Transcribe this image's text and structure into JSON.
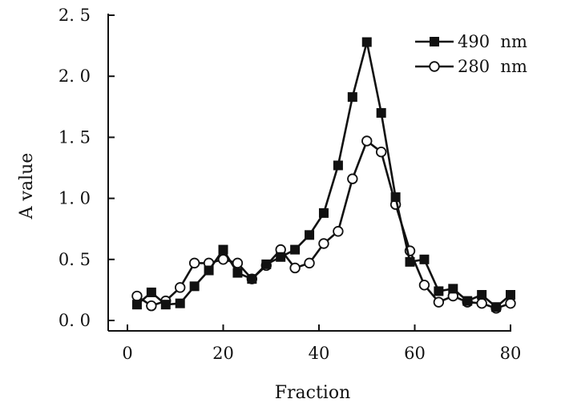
{
  "chart_data": {
    "type": "line",
    "xlabel": "Fraction",
    "ylabel": "A value",
    "xlim": [
      -5,
      80
    ],
    "ylim": [
      -0.1,
      2.5
    ],
    "xticks": [
      0,
      20,
      40,
      60,
      80
    ],
    "yticks": [
      0.0,
      0.5,
      1.0,
      1.5,
      2.0,
      2.5
    ],
    "xtick_labels": [
      "0",
      "20",
      "40",
      "60",
      "80"
    ],
    "ytick_labels": [
      "0. 0",
      "0. 5",
      "1. 0",
      "1. 5",
      "2. 0",
      "2. 5"
    ],
    "grid": false,
    "legend_position": "top-right",
    "series": [
      {
        "name": "490  nm",
        "marker": "filled-square",
        "x": [
          2,
          5,
          8,
          11,
          14,
          17,
          20,
          23,
          26,
          29,
          32,
          35,
          38,
          41,
          44,
          47,
          50,
          53,
          56,
          59,
          62,
          65,
          68,
          71,
          74,
          77,
          80
        ],
        "y": [
          0.13,
          0.23,
          0.13,
          0.14,
          0.28,
          0.41,
          0.58,
          0.39,
          0.34,
          0.46,
          0.52,
          0.58,
          0.7,
          0.88,
          1.27,
          1.83,
          2.28,
          1.7,
          1.01,
          0.48,
          0.5,
          0.24,
          0.26,
          0.16,
          0.21,
          0.11,
          0.21
        ]
      },
      {
        "name": "280  nm",
        "marker": "open-circle",
        "x": [
          2,
          5,
          8,
          11,
          14,
          17,
          20,
          23,
          26,
          29,
          32,
          35,
          38,
          41,
          44,
          47,
          50,
          53,
          56,
          59,
          62,
          65,
          68,
          71,
          74,
          77,
          80
        ],
        "y": [
          0.2,
          0.12,
          0.16,
          0.27,
          0.47,
          0.47,
          0.5,
          0.47,
          0.34,
          0.45,
          0.58,
          0.43,
          0.47,
          0.63,
          0.73,
          1.16,
          1.47,
          1.38,
          0.95,
          0.57,
          0.29,
          0.15,
          0.2,
          0.15,
          0.14,
          0.1,
          0.14
        ]
      }
    ]
  }
}
